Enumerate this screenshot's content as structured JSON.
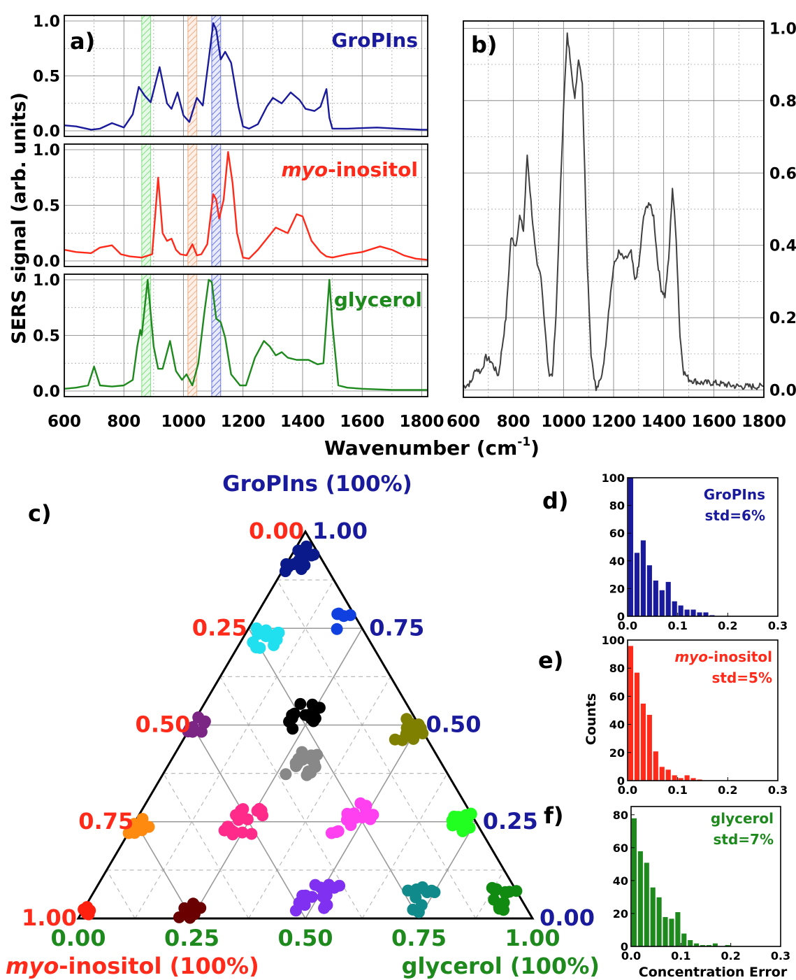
{
  "figure": {
    "shared_xlabel_main": "Wavenumber (cm",
    "shared_xlabel_sup": "-1",
    "shared_xlabel_tail": ")",
    "shared_ylabel": "SERS signal (arb. units)"
  },
  "colors": {
    "gropins": "#1a1a9c",
    "myo": "#ff2a1a",
    "glycerol": "#1e8a1e",
    "mixture": "#404040",
    "band_green": "#66dd66",
    "band_orange": "#f0a070",
    "band_blue": "#5060e0"
  },
  "chart_data": [
    {
      "id": "a",
      "panel_label": "a)",
      "type": "line",
      "xlim": [
        600,
        1820
      ],
      "x_ticks": [
        "600",
        "800",
        "1000",
        "1200",
        "1400",
        "1600",
        "1800"
      ],
      "x_tick_values": [
        600,
        800,
        1000,
        1200,
        1400,
        1600,
        1800
      ],
      "y_ticks": [
        "0.0",
        "0.5",
        "1.0"
      ],
      "y_tick_values": [
        0,
        0.5,
        1.0
      ],
      "bands": [
        {
          "from": 860,
          "to": 890,
          "color": "band_green"
        },
        {
          "from": 1015,
          "to": 1045,
          "color": "band_orange"
        },
        {
          "from": 1095,
          "to": 1125,
          "color": "band_blue"
        }
      ],
      "series": [
        {
          "name": "GroPIns",
          "label_parts": [
            {
              "t": "GroPIns",
              "i": false
            }
          ],
          "color": "gropins",
          "x": [
            600,
            640,
            690,
            720,
            760,
            800,
            830,
            850,
            870,
            890,
            920,
            945,
            960,
            980,
            1000,
            1020,
            1045,
            1065,
            1085,
            1100,
            1110,
            1125,
            1140,
            1160,
            1185,
            1200,
            1220,
            1250,
            1280,
            1300,
            1330,
            1360,
            1390,
            1410,
            1440,
            1460,
            1480,
            1490,
            1500,
            1550,
            1650,
            1720,
            1800,
            1820
          ],
          "y": [
            0.05,
            0.04,
            0.01,
            0.02,
            0.07,
            0.03,
            0.15,
            0.4,
            0.32,
            0.26,
            0.58,
            0.25,
            0.2,
            0.35,
            0.14,
            0.08,
            0.3,
            0.23,
            0.65,
            0.98,
            0.92,
            0.65,
            0.72,
            0.62,
            0.22,
            0.04,
            0.02,
            0.06,
            0.22,
            0.3,
            0.25,
            0.35,
            0.28,
            0.2,
            0.18,
            0.22,
            0.38,
            0.12,
            0.02,
            0.02,
            0.03,
            0.02,
            0.01,
            0.01
          ]
        },
        {
          "name": "myo-inositol",
          "label_parts": [
            {
              "t": "myo",
              "i": true
            },
            {
              "t": "-inositol",
              "i": false
            }
          ],
          "color": "myo",
          "x": [
            600,
            640,
            690,
            720,
            760,
            790,
            820,
            860,
            895,
            915,
            930,
            945,
            960,
            975,
            990,
            1010,
            1030,
            1045,
            1060,
            1080,
            1100,
            1110,
            1120,
            1135,
            1150,
            1165,
            1180,
            1200,
            1220,
            1250,
            1280,
            1310,
            1350,
            1380,
            1400,
            1430,
            1460,
            1480,
            1500,
            1550,
            1600,
            1660,
            1700,
            1740,
            1780,
            1820
          ],
          "y": [
            0.1,
            0.08,
            0.07,
            0.12,
            0.14,
            0.06,
            0.04,
            0.03,
            0.06,
            0.75,
            0.25,
            0.18,
            0.2,
            0.1,
            0.06,
            0.05,
            0.15,
            0.05,
            0.06,
            0.15,
            0.6,
            0.55,
            0.38,
            0.55,
            0.98,
            0.7,
            0.25,
            0.03,
            0.02,
            0.1,
            0.2,
            0.3,
            0.25,
            0.42,
            0.4,
            0.18,
            0.08,
            0.04,
            0.03,
            0.06,
            0.08,
            0.13,
            0.1,
            0.05,
            0.02,
            0.01
          ]
        },
        {
          "name": "glycerol",
          "label_parts": [
            {
              "t": "glycerol",
              "i": false
            }
          ],
          "color": "glycerol",
          "x": [
            600,
            640,
            680,
            700,
            720,
            760,
            800,
            830,
            845,
            855,
            860,
            880,
            900,
            915,
            930,
            955,
            975,
            995,
            1010,
            1030,
            1050,
            1070,
            1085,
            1095,
            1110,
            1125,
            1140,
            1160,
            1190,
            1210,
            1240,
            1270,
            1290,
            1310,
            1330,
            1350,
            1380,
            1420,
            1450,
            1470,
            1490,
            1500,
            1520,
            1550,
            1600,
            1700,
            1820
          ],
          "y": [
            0.02,
            0.03,
            0.05,
            0.22,
            0.05,
            0.04,
            0.05,
            0.1,
            0.4,
            0.55,
            0.5,
            1.0,
            0.4,
            0.2,
            0.2,
            0.45,
            0.18,
            0.1,
            0.15,
            0.05,
            0.25,
            0.7,
            1.0,
            0.98,
            0.65,
            0.62,
            0.48,
            0.15,
            0.05,
            0.05,
            0.3,
            0.45,
            0.4,
            0.32,
            0.35,
            0.3,
            0.28,
            0.28,
            0.24,
            0.25,
            1.0,
            0.6,
            0.05,
            0.03,
            0.02,
            0.01,
            0.01
          ]
        }
      ]
    },
    {
      "id": "b",
      "panel_label": "b)",
      "type": "line",
      "xlim": [
        600,
        1800
      ],
      "x_ticks": [
        "600",
        "800",
        "1000",
        "1200",
        "1400",
        "1600",
        "1800"
      ],
      "x_tick_values": [
        600,
        800,
        1000,
        1200,
        1400,
        1600,
        1800
      ],
      "y_ticks": [
        "0.0",
        "0.2",
        "0.4",
        "0.6",
        "0.8",
        "1.0"
      ],
      "y_tick_values": [
        0,
        0.2,
        0.4,
        0.6,
        0.8,
        1.0
      ],
      "ylim": [
        -0.02,
        1.02
      ],
      "y_axis_side": "right",
      "series": [
        {
          "name": "",
          "color": "mixture",
          "x": [
            600,
            630,
            650,
            670,
            690,
            710,
            740,
            770,
            790,
            810,
            825,
            840,
            855,
            870,
            885,
            895,
            910,
            925,
            940,
            955,
            970,
            985,
            1000,
            1015,
            1030,
            1045,
            1060,
            1075,
            1085,
            1095,
            1110,
            1130,
            1150,
            1165,
            1180,
            1200,
            1220,
            1245,
            1270,
            1285,
            1300,
            1320,
            1340,
            1360,
            1375,
            1390,
            1405,
            1420,
            1435,
            1450,
            1465,
            1480,
            1500,
            1550,
            1600,
            1700,
            1800
          ],
          "y": [
            0.01,
            0.02,
            0.06,
            0.05,
            0.09,
            0.08,
            0.04,
            0.2,
            0.42,
            0.4,
            0.48,
            0.44,
            0.65,
            0.52,
            0.4,
            0.34,
            0.32,
            0.18,
            0.05,
            0.04,
            0.2,
            0.5,
            0.78,
            0.98,
            0.9,
            0.8,
            0.92,
            0.85,
            0.6,
            0.35,
            0.1,
            0.0,
            0.03,
            0.1,
            0.22,
            0.34,
            0.38,
            0.36,
            0.38,
            0.3,
            0.34,
            0.48,
            0.52,
            0.48,
            0.36,
            0.28,
            0.26,
            0.36,
            0.56,
            0.42,
            0.15,
            0.05,
            0.03,
            0.02,
            0.02,
            0.01,
            0.01
          ]
        }
      ]
    },
    {
      "id": "c",
      "panel_label": "c)",
      "type": "scatter",
      "ternary": true,
      "top_label": "GroPIns (100%)",
      "left_label_parts": [
        {
          "t": "myo",
          "i": true
        },
        {
          "t": "-inositol (100%)",
          "i": false
        }
      ],
      "right_label": "glycerol (100%)",
      "bottom_ticks": [
        "0.00",
        "0.25",
        "0.50",
        "0.75",
        "1.00"
      ],
      "left_ticks": [
        "0.00",
        "0.25",
        "0.50",
        "0.75",
        "1.00"
      ],
      "right_ticks": [
        "1.00",
        "0.75",
        "0.50",
        "0.25",
        "0.00"
      ],
      "tick_values": [
        0,
        0.25,
        0.5,
        0.75,
        1.0
      ],
      "clusters": [
        {
          "color": "#0a1a8a",
          "g": 0.93,
          "gl": 0.02,
          "spread": 0.035,
          "n": 14
        },
        {
          "color": "#1040e0",
          "g": 0.77,
          "gl": 0.2,
          "spread": 0.025,
          "n": 5
        },
        {
          "color": "#20e0f0",
          "g": 0.72,
          "gl": 0.05,
          "spread": 0.035,
          "n": 14
        },
        {
          "color": "#000000",
          "g": 0.52,
          "gl": 0.24,
          "spread": 0.035,
          "n": 16
        },
        {
          "color": "#808000",
          "g": 0.49,
          "gl": 0.49,
          "spread": 0.03,
          "n": 14
        },
        {
          "color": "#7b2585",
          "g": 0.5,
          "gl": 0.01,
          "spread": 0.025,
          "n": 8
        },
        {
          "color": "#888888",
          "g": 0.4,
          "gl": 0.3,
          "spread": 0.035,
          "n": 16
        },
        {
          "color": "#ff2a8a",
          "g": 0.25,
          "gl": 0.24,
          "spread": 0.035,
          "n": 20
        },
        {
          "color": "#ff40f0",
          "g": 0.26,
          "gl": 0.48,
          "spread": 0.04,
          "n": 16
        },
        {
          "color": "#20ff20",
          "g": 0.25,
          "gl": 0.72,
          "spread": 0.025,
          "n": 16
        },
        {
          "color": "#ff8a10",
          "g": 0.24,
          "gl": 0.02,
          "spread": 0.02,
          "n": 8
        },
        {
          "color": "#ff2010",
          "g": 0.02,
          "gl": 0.01,
          "spread": 0.012,
          "n": 8
        },
        {
          "color": "#6a0000",
          "g": 0.02,
          "gl": 0.24,
          "spread": 0.02,
          "n": 10
        },
        {
          "color": "#8030f0",
          "g": 0.05,
          "gl": 0.5,
          "spread": 0.04,
          "n": 18
        },
        {
          "color": "#108a8a",
          "g": 0.05,
          "gl": 0.72,
          "spread": 0.035,
          "n": 12
        },
        {
          "color": "#108a10",
          "g": 0.05,
          "gl": 0.9,
          "spread": 0.03,
          "n": 12
        }
      ]
    },
    {
      "id": "d",
      "panel_label": "d)",
      "type": "bar",
      "series_label": "GroPIns",
      "std_label": "std=6%",
      "color": "gropins",
      "bin_width": 0.0125,
      "values": [
        100,
        46,
        55,
        37,
        26,
        19,
        25,
        11,
        8,
        5,
        5,
        3,
        3,
        1,
        0,
        0
      ],
      "xlim": [
        0,
        0.3
      ],
      "ylim": [
        0,
        100
      ],
      "x_ticks": [
        "0.0",
        "0.1",
        "0.2",
        "0.3"
      ],
      "x_tick_values": [
        0,
        0.1,
        0.2,
        0.3
      ],
      "y_ticks": [
        "0",
        "20",
        "40",
        "60",
        "80",
        "100"
      ],
      "y_tick_values": [
        0,
        20,
        40,
        60,
        80,
        100
      ]
    },
    {
      "id": "e",
      "panel_label": "e)",
      "type": "bar",
      "series_label_parts": [
        {
          "t": "myo",
          "i": true
        },
        {
          "t": "-inositol",
          "i": false
        }
      ],
      "std_label": "std=5%",
      "color": "myo",
      "bin_width": 0.0125,
      "values": [
        96,
        77,
        55,
        47,
        21,
        10,
        8,
        4,
        2,
        4,
        2,
        1,
        0,
        0,
        0,
        0
      ],
      "ylabel": "Counts",
      "xlim": [
        0,
        0.3
      ],
      "ylim": [
        0,
        100
      ],
      "x_ticks": [
        "0.0",
        "0.1",
        "0.2",
        "0.3"
      ],
      "x_tick_values": [
        0,
        0.1,
        0.2,
        0.3
      ],
      "y_ticks": [
        "0",
        "20",
        "40",
        "60",
        "80",
        "100"
      ],
      "y_tick_values": [
        0,
        20,
        40,
        60,
        80,
        100
      ]
    },
    {
      "id": "f",
      "panel_label": "f)",
      "type": "bar",
      "series_label": "glycerol",
      "std_label": "std=7%",
      "color": "glycerol",
      "bin_width": 0.0125,
      "values": [
        78,
        58,
        51,
        36,
        30,
        18,
        17,
        21,
        8,
        4,
        2,
        1,
        1,
        2,
        0,
        1
      ],
      "xlabel": "Concentration Error",
      "xlim": [
        0,
        0.3
      ],
      "ylim": [
        0,
        85
      ],
      "x_ticks": [
        "0.0",
        "0.1",
        "0.2",
        "0.3"
      ],
      "x_tick_values": [
        0,
        0.1,
        0.2,
        0.3
      ],
      "y_ticks": [
        "0",
        "20",
        "40",
        "60",
        "80"
      ],
      "y_tick_values": [
        0,
        20,
        40,
        60,
        80
      ]
    }
  ]
}
